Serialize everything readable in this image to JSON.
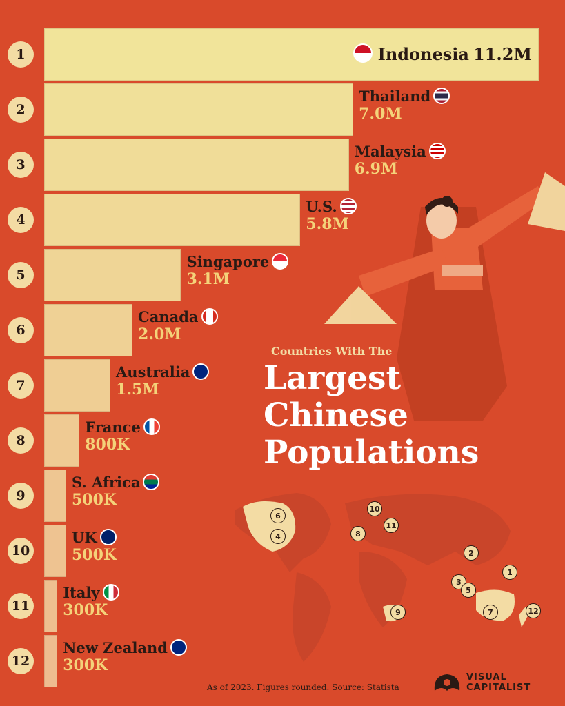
{
  "chart_data": {
    "type": "bar",
    "orientation": "horizontal",
    "categories": [
      "Indonesia",
      "Thailand",
      "Malaysia",
      "U.S.",
      "Singapore",
      "Canada",
      "Australia",
      "France",
      "S. Africa",
      "UK",
      "Italy",
      "New Zealand"
    ],
    "ranks": [
      "1",
      "2",
      "3",
      "4",
      "5",
      "6",
      "7",
      "8",
      "9",
      "10",
      "11",
      "12"
    ],
    "values": [
      11.2,
      7.0,
      6.9,
      5.8,
      3.1,
      2.0,
      1.5,
      0.8,
      0.5,
      0.5,
      0.3,
      0.3
    ],
    "value_labels": [
      "11.2M",
      "7.0M",
      "6.9M",
      "5.8M",
      "3.1M",
      "2.0M",
      "1.5M",
      "800K",
      "500K",
      "500K",
      "300K",
      "300K"
    ],
    "flag_icons": [
      "indonesia-flag-icon",
      "thailand-flag-icon",
      "malaysia-flag-icon",
      "us-flag-icon",
      "singapore-flag-icon",
      "canada-flag-icon",
      "australia-flag-icon",
      "france-flag-icon",
      "south-africa-flag-icon",
      "uk-flag-icon",
      "italy-flag-icon",
      "new-zealand-flag-icon"
    ],
    "subtitle": "Countries With The",
    "title_lines": [
      "Largest",
      "Chinese",
      "Populations"
    ],
    "note": "As of 2023. Figures rounded. Source: Statista",
    "map_markers": [
      "6",
      "4",
      "10",
      "11",
      "8",
      "2",
      "3",
      "5",
      "1",
      "7",
      "12",
      "9"
    ],
    "unit": "millions",
    "colors": {
      "background": "#d94a2b",
      "bar_top": "#f1e49a",
      "bar_bottom": "#f0c08a",
      "text_dark": "#2a1a14",
      "value_gold": "#f4d37a"
    }
  },
  "brand": {
    "line1": "VISUAL",
    "line2": "CAPITALIST"
  }
}
